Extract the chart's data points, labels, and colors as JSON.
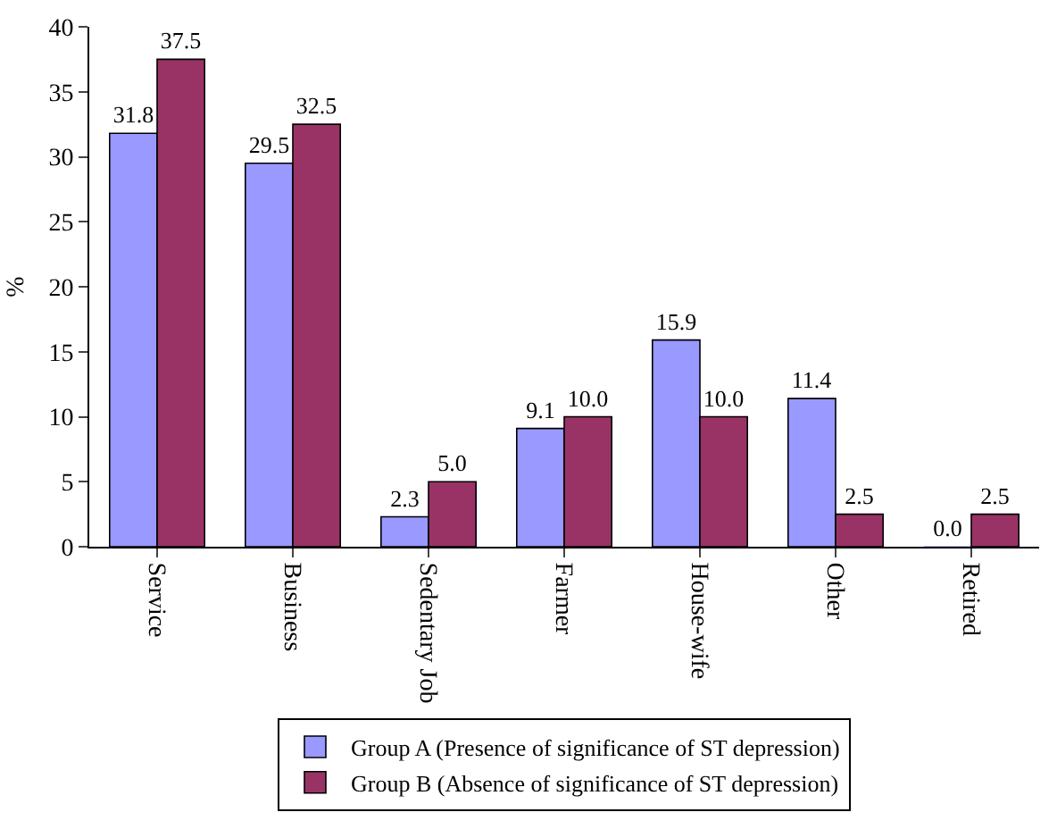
{
  "chart_data": {
    "type": "bar",
    "ylabel": "%",
    "categories": [
      "Service",
      "Business",
      "Sedentary Job",
      "Farmer",
      "House-wife",
      "Other",
      "Retired"
    ],
    "series": [
      {
        "name": "Group A (Presence of significance of ST depression)",
        "color": "#9999ff",
        "values": [
          31.8,
          29.5,
          2.3,
          9.1,
          15.9,
          11.4,
          0.0
        ],
        "value_labels": [
          "31.8",
          "29.5",
          "2.3",
          "9.1",
          "15.9",
          "11.4",
          "0.0"
        ]
      },
      {
        "name": "Group B (Absence of significance of ST depression)",
        "color": "#993366",
        "values": [
          37.5,
          32.5,
          5.0,
          10.0,
          10.0,
          2.5,
          2.5
        ],
        "value_labels": [
          "37.5",
          "32.5",
          "5.0",
          "10.0",
          "10.0",
          "2.5",
          "2.5"
        ]
      }
    ],
    "ylim": [
      0,
      40
    ],
    "yticks": [
      0,
      5,
      10,
      15,
      20,
      25,
      30,
      35,
      40
    ],
    "grid": false,
    "legend": "bottom"
  }
}
